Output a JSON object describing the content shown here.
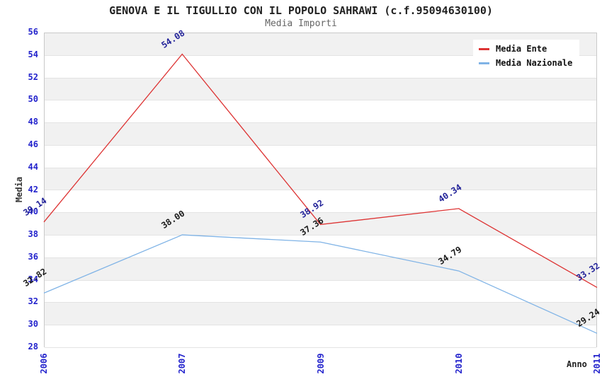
{
  "title": "GENOVA E IL TIGULLIO CON IL POPOLO SAHRAWI (c.f.95094630100)",
  "subtitle": "Media Importi",
  "chart_data": {
    "type": "line",
    "categories": [
      "2006",
      "2007",
      "2009",
      "2010",
      "2011"
    ],
    "series": [
      {
        "name": "Media Nazionale",
        "values": [
          32.82,
          38.0,
          37.36,
          34.79,
          29.24
        ],
        "color": "#7fb3e6",
        "label_color": "#1a1a1a"
      },
      {
        "name": "Media Ente",
        "values": [
          39.14,
          54.08,
          38.92,
          40.34,
          33.32
        ],
        "color": "#dd3333",
        "label_color": "#222299"
      }
    ],
    "xlabel": "Anno",
    "ylabel": "Media",
    "ylim": [
      28,
      56
    ],
    "ytick_step": 2,
    "grid": "horizontal-bands",
    "band_colors": [
      "#f1f1f1",
      "#ffffff"
    ],
    "tick_color": "#2222cc",
    "legend_position": "top-right",
    "value_label_decimals": 2
  }
}
